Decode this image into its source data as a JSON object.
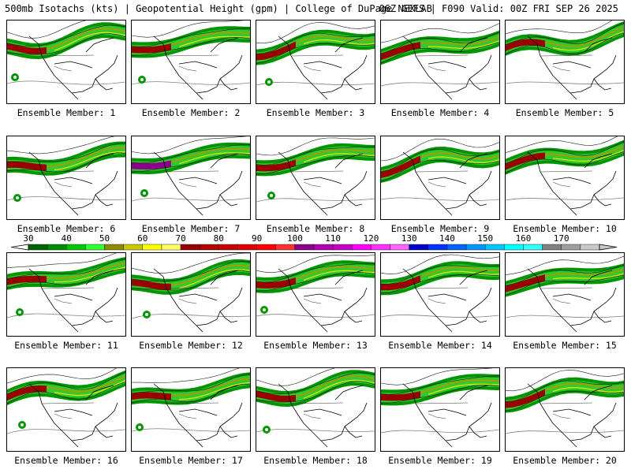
{
  "header": {
    "title_left": "500mb Isotachs (kts) | Geopotential Height (gpm) | College of DuPage NEXLAB",
    "title_right": "06Z GEFS | F090 Valid: 00Z FRI SEP 26 2025"
  },
  "members": [
    {
      "label": "Ensemble Member: 1"
    },
    {
      "label": "Ensemble Member: 2"
    },
    {
      "label": "Ensemble Member: 3"
    },
    {
      "label": "Ensemble Member: 4"
    },
    {
      "label": "Ensemble Member: 5"
    },
    {
      "label": "Ensemble Member: 6"
    },
    {
      "label": "Ensemble Member: 7"
    },
    {
      "label": "Ensemble Member: 8"
    },
    {
      "label": "Ensemble Member: 9"
    },
    {
      "label": "Ensemble Member: 10"
    },
    {
      "label": "Ensemble Member: 11"
    },
    {
      "label": "Ensemble Member: 12"
    },
    {
      "label": "Ensemble Member: 13"
    },
    {
      "label": "Ensemble Member: 14"
    },
    {
      "label": "Ensemble Member: 15"
    },
    {
      "label": "Ensemble Member: 16"
    },
    {
      "label": "Ensemble Member: 17"
    },
    {
      "label": "Ensemble Member: 18"
    },
    {
      "label": "Ensemble Member: 19"
    },
    {
      "label": "Ensemble Member: 20"
    }
  ],
  "colorbar": {
    "ticks": [
      "30",
      "40",
      "50",
      "60",
      "70",
      "80",
      "90",
      "100",
      "110",
      "120",
      "130",
      "140",
      "150",
      "160",
      "170"
    ],
    "colors": [
      "#006400",
      "#008c00",
      "#00c800",
      "#32ff32",
      "#8c8c00",
      "#c8c800",
      "#ffff00",
      "#ffff64",
      "#960000",
      "#b40000",
      "#c80000",
      "#e10000",
      "#ff0000",
      "#ff3232",
      "#8c008c",
      "#b400b4",
      "#c800c8",
      "#ff00ff",
      "#ff32ff",
      "#ff64ff",
      "#0000c8",
      "#0032ff",
      "#0064ff",
      "#0096ff",
      "#00c8ff",
      "#00ffff",
      "#32ffff",
      "#808080",
      "#a0a0a0",
      "#c8c8c8"
    ]
  },
  "map_colors": {
    "green_dark": "#006400",
    "green_mid": "#009600",
    "green_light": "#32c832",
    "olive": "#a0a000",
    "yellow": "#e6e600",
    "maroon": "#9b0000",
    "purple": "#8c008c",
    "height_contour": "#808080",
    "coastline": "#000000"
  }
}
